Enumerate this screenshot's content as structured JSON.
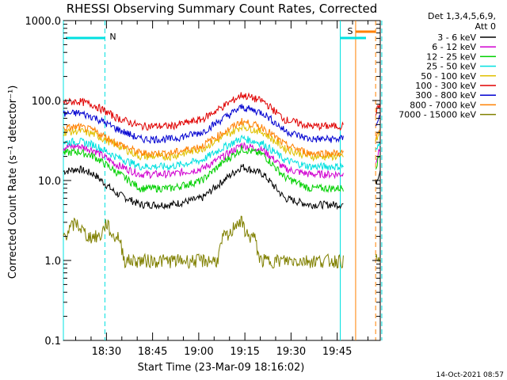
{
  "chart_data": {
    "type": "line",
    "title": "RHESSI Observing Summary Count Rates, Corrected",
    "xlabel": "Start Time (23-Mar-09 18:16:02)",
    "ylabel": "Corrected Count Rate (s⁻¹ detector⁻¹)",
    "yscale": "log",
    "ylim": [
      0.1,
      1000.0
    ],
    "xlim_minutes": [
      0,
      103
    ],
    "x_tick_labels": [
      "18:30",
      "18:45",
      "19:00",
      "19:15",
      "19:30",
      "19:45"
    ],
    "y_tick_labels": [
      "0.1",
      "1.0",
      "10.0",
      "100.0",
      "1000.0"
    ],
    "legend_header": [
      "Det 1,3,4,5,6,9,",
      "Att 0"
    ],
    "legend_position": "right",
    "series": [
      {
        "name": "3 - 6 keV",
        "color": "#000000",
        "x": [
          0,
          5,
          10,
          17,
          25,
          35,
          45,
          52,
          58,
          65,
          72,
          80,
          90,
          100,
          103
        ],
        "values": [
          13,
          14,
          12,
          7,
          5,
          5,
          6,
          10,
          15,
          12,
          6,
          5,
          5,
          6,
          14
        ]
      },
      {
        "name": "6 - 12 keV",
        "color": "#d000d0",
        "x": [
          0,
          5,
          10,
          17,
          25,
          35,
          45,
          52,
          58,
          65,
          72,
          80,
          90,
          100,
          103
        ],
        "values": [
          26,
          27,
          24,
          16,
          12,
          12,
          14,
          20,
          28,
          24,
          14,
          12,
          12,
          13,
          25
        ]
      },
      {
        "name": "12 - 25 keV",
        "color": "#00d000",
        "x": [
          0,
          5,
          10,
          17,
          25,
          35,
          45,
          52,
          58,
          65,
          72,
          80,
          90,
          100,
          103
        ],
        "values": [
          22,
          23,
          20,
          13,
          8,
          8,
          10,
          17,
          25,
          21,
          11,
          8,
          8,
          10,
          22
        ]
      },
      {
        "name": "25 - 50 keV",
        "color": "#00e0e0",
        "x": [
          0,
          5,
          10,
          17,
          25,
          35,
          45,
          52,
          58,
          65,
          72,
          80,
          90,
          100,
          103
        ],
        "values": [
          30,
          31,
          28,
          20,
          15,
          15,
          18,
          26,
          34,
          29,
          18,
          15,
          15,
          17,
          30
        ]
      },
      {
        "name": "50 - 100 keV",
        "color": "#e0c000",
        "x": [
          0,
          5,
          10,
          17,
          25,
          35,
          45,
          52,
          58,
          65,
          72,
          80,
          90,
          100,
          103
        ],
        "values": [
          40,
          42,
          38,
          28,
          20,
          20,
          25,
          35,
          48,
          40,
          25,
          20,
          20,
          24,
          40
        ]
      },
      {
        "name": "100 - 300 keV",
        "color": "#e00000",
        "x": [
          0,
          5,
          10,
          17,
          25,
          35,
          45,
          52,
          58,
          65,
          72,
          80,
          90,
          100,
          103
        ],
        "values": [
          95,
          98,
          88,
          62,
          48,
          48,
          58,
          85,
          118,
          98,
          58,
          48,
          48,
          56,
          90
        ]
      },
      {
        "name": "300 - 800 keV",
        "color": "#0000d0",
        "x": [
          0,
          5,
          10,
          17,
          25,
          35,
          45,
          52,
          58,
          65,
          72,
          80,
          90,
          100,
          103
        ],
        "values": [
          68,
          70,
          62,
          45,
          33,
          33,
          40,
          60,
          83,
          70,
          42,
          33,
          33,
          40,
          65
        ]
      },
      {
        "name": "800 - 7000 keV",
        "color": "#ff8000",
        "x": [
          0,
          5,
          10,
          17,
          25,
          35,
          45,
          52,
          58,
          65,
          72,
          80,
          90,
          100,
          103
        ],
        "values": [
          45,
          47,
          42,
          30,
          22,
          22,
          27,
          40,
          55,
          46,
          28,
          22,
          22,
          26,
          42
        ]
      },
      {
        "name": "7000 - 15000 keV",
        "color": "#808000",
        "x": [
          0,
          4,
          8,
          12,
          14,
          16,
          18,
          20,
          22,
          24,
          26,
          28,
          30,
          32,
          34,
          36,
          38,
          40,
          42,
          44,
          46,
          48,
          50,
          52,
          54,
          56,
          58,
          60,
          62,
          64,
          66,
          68,
          70,
          72,
          74,
          76,
          78,
          80
        ],
        "values": [
          2,
          3,
          2,
          2,
          3,
          2,
          2,
          1,
          1,
          1,
          1,
          1,
          1,
          1,
          1,
          1,
          1,
          1,
          1,
          1,
          1,
          1,
          1,
          2,
          2,
          3,
          3,
          2,
          2,
          1,
          1,
          1,
          1,
          1,
          1,
          1,
          1,
          1
        ]
      }
    ],
    "annotations": [
      {
        "label": "N",
        "type": "night-bar"
      },
      {
        "label": "S",
        "type": "saa-bar"
      }
    ]
  },
  "timestamp": "14-Oct-2021 08:57"
}
